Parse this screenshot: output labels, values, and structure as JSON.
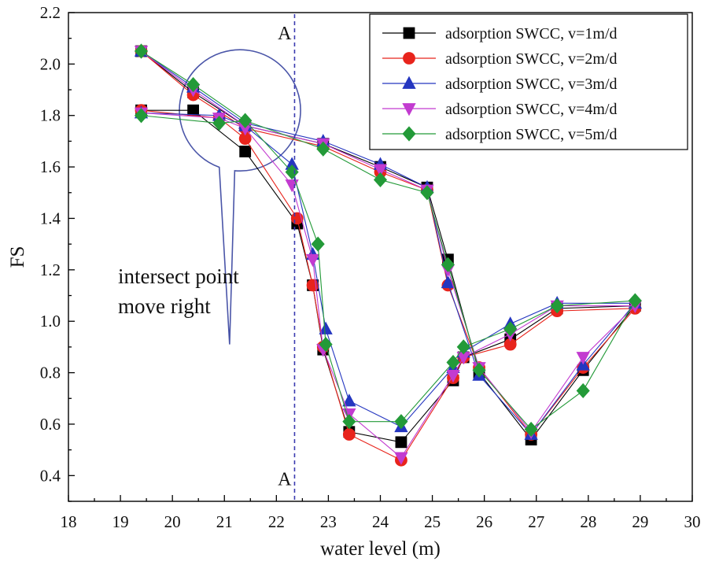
{
  "chart_data": {
    "type": "line",
    "title": "",
    "xlabel": "water level (m)",
    "ylabel": "FS",
    "xlim": [
      18,
      30
    ],
    "ylim": [
      0.3,
      2.2
    ],
    "xticks": [
      "18",
      "19",
      "20",
      "21",
      "22",
      "23",
      "24",
      "25",
      "26",
      "27",
      "28",
      "29",
      "30"
    ],
    "yticks": [
      "0.4",
      "0.6",
      "0.8",
      "1.0",
      "1.2",
      "1.4",
      "1.6",
      "1.8",
      "2.0",
      "2.2"
    ],
    "grid": false,
    "legend_position": "top-right",
    "series": [
      {
        "name": "adsorption SWCC, v=1m/d",
        "color": "#000000",
        "marker": "square",
        "x": [
          19.4,
          20.4,
          21.4,
          22.4,
          22.7,
          22.9,
          23.4,
          24.4,
          25.4,
          25.6,
          26.5,
          27.4,
          28.9,
          27.9,
          26.9,
          25.9,
          25.3,
          24.9,
          24.0,
          22.9,
          21.4,
          20.4,
          19.4
        ],
        "y": [
          1.82,
          1.82,
          1.66,
          1.38,
          1.14,
          0.89,
          0.57,
          0.53,
          0.77,
          0.86,
          0.93,
          1.05,
          1.06,
          0.81,
          0.54,
          0.8,
          1.24,
          1.52,
          1.6,
          1.69,
          1.76,
          1.89,
          2.05
        ]
      },
      {
        "name": "adsorption SWCC, v=2m/d",
        "color": "#e8241c",
        "marker": "circle",
        "x": [
          19.4,
          20.9,
          21.4,
          22.4,
          22.7,
          22.9,
          23.4,
          24.4,
          25.4,
          25.6,
          26.5,
          27.4,
          28.9,
          27.9,
          26.9,
          25.9,
          25.3,
          24.9,
          24.0,
          22.9,
          21.4,
          20.4,
          19.4
        ],
        "y": [
          1.82,
          1.79,
          1.71,
          1.4,
          1.14,
          0.9,
          0.56,
          0.46,
          0.78,
          0.86,
          0.91,
          1.04,
          1.05,
          0.82,
          0.56,
          0.82,
          1.14,
          1.51,
          1.58,
          1.68,
          1.75,
          1.88,
          2.05
        ]
      },
      {
        "name": "adsorption SWCC, v=3m/d",
        "color": "#2436c0",
        "marker": "triangle-up",
        "x": [
          19.4,
          20.9,
          21.4,
          22.3,
          22.7,
          22.95,
          23.4,
          24.4,
          25.4,
          25.6,
          26.5,
          27.4,
          28.9,
          27.9,
          26.9,
          25.9,
          25.3,
          24.9,
          24.0,
          22.9,
          21.4,
          20.4,
          19.4
        ],
        "y": [
          1.81,
          1.8,
          1.76,
          1.61,
          1.26,
          0.97,
          0.69,
          0.59,
          0.82,
          0.88,
          0.99,
          1.07,
          1.07,
          0.83,
          0.56,
          0.79,
          1.15,
          1.52,
          1.61,
          1.7,
          1.77,
          1.91,
          2.05
        ]
      },
      {
        "name": "adsorption SWCC, v=4m/d",
        "color": "#c23bd0",
        "marker": "triangle-down",
        "x": [
          19.4,
          20.9,
          21.4,
          22.3,
          22.7,
          22.9,
          23.4,
          24.4,
          25.4,
          25.6,
          26.5,
          27.4,
          28.9,
          27.9,
          26.9,
          25.9,
          25.3,
          24.9,
          24.0,
          22.9,
          21.4,
          20.4,
          19.4
        ],
        "y": [
          1.81,
          1.79,
          1.75,
          1.53,
          1.24,
          0.89,
          0.64,
          0.47,
          0.79,
          0.86,
          0.95,
          1.06,
          1.06,
          0.86,
          0.57,
          0.82,
          1.2,
          1.51,
          1.59,
          1.69,
          1.76,
          1.9,
          2.05
        ]
      },
      {
        "name": "adsorption SWCC, v=5m/d",
        "color": "#239a38",
        "marker": "diamond",
        "x": [
          19.4,
          20.9,
          21.4,
          22.3,
          22.8,
          22.95,
          23.4,
          24.4,
          25.4,
          25.6,
          26.5,
          27.4,
          28.9,
          27.9,
          26.9,
          25.9,
          25.3,
          24.9,
          24.0,
          22.9,
          21.4,
          20.4,
          19.4
        ],
        "y": [
          1.8,
          1.77,
          1.78,
          1.58,
          1.3,
          0.91,
          0.61,
          0.61,
          0.84,
          0.9,
          0.97,
          1.06,
          1.08,
          0.73,
          0.58,
          0.81,
          1.22,
          1.5,
          1.55,
          1.67,
          1.78,
          1.92,
          2.05
        ]
      }
    ],
    "reference_line": {
      "x": 22.35,
      "label_top": "A",
      "label_bottom": "A",
      "color": "#3b3bb0"
    },
    "annotation": {
      "lines": [
        "intersect point",
        "move right"
      ],
      "circle_center_x": 21.3,
      "circle_center_y": 1.82,
      "pointer_tip_x": 21.1,
      "pointer_tip_y": 0.91
    },
    "annotation_color": "#4a55a8"
  }
}
